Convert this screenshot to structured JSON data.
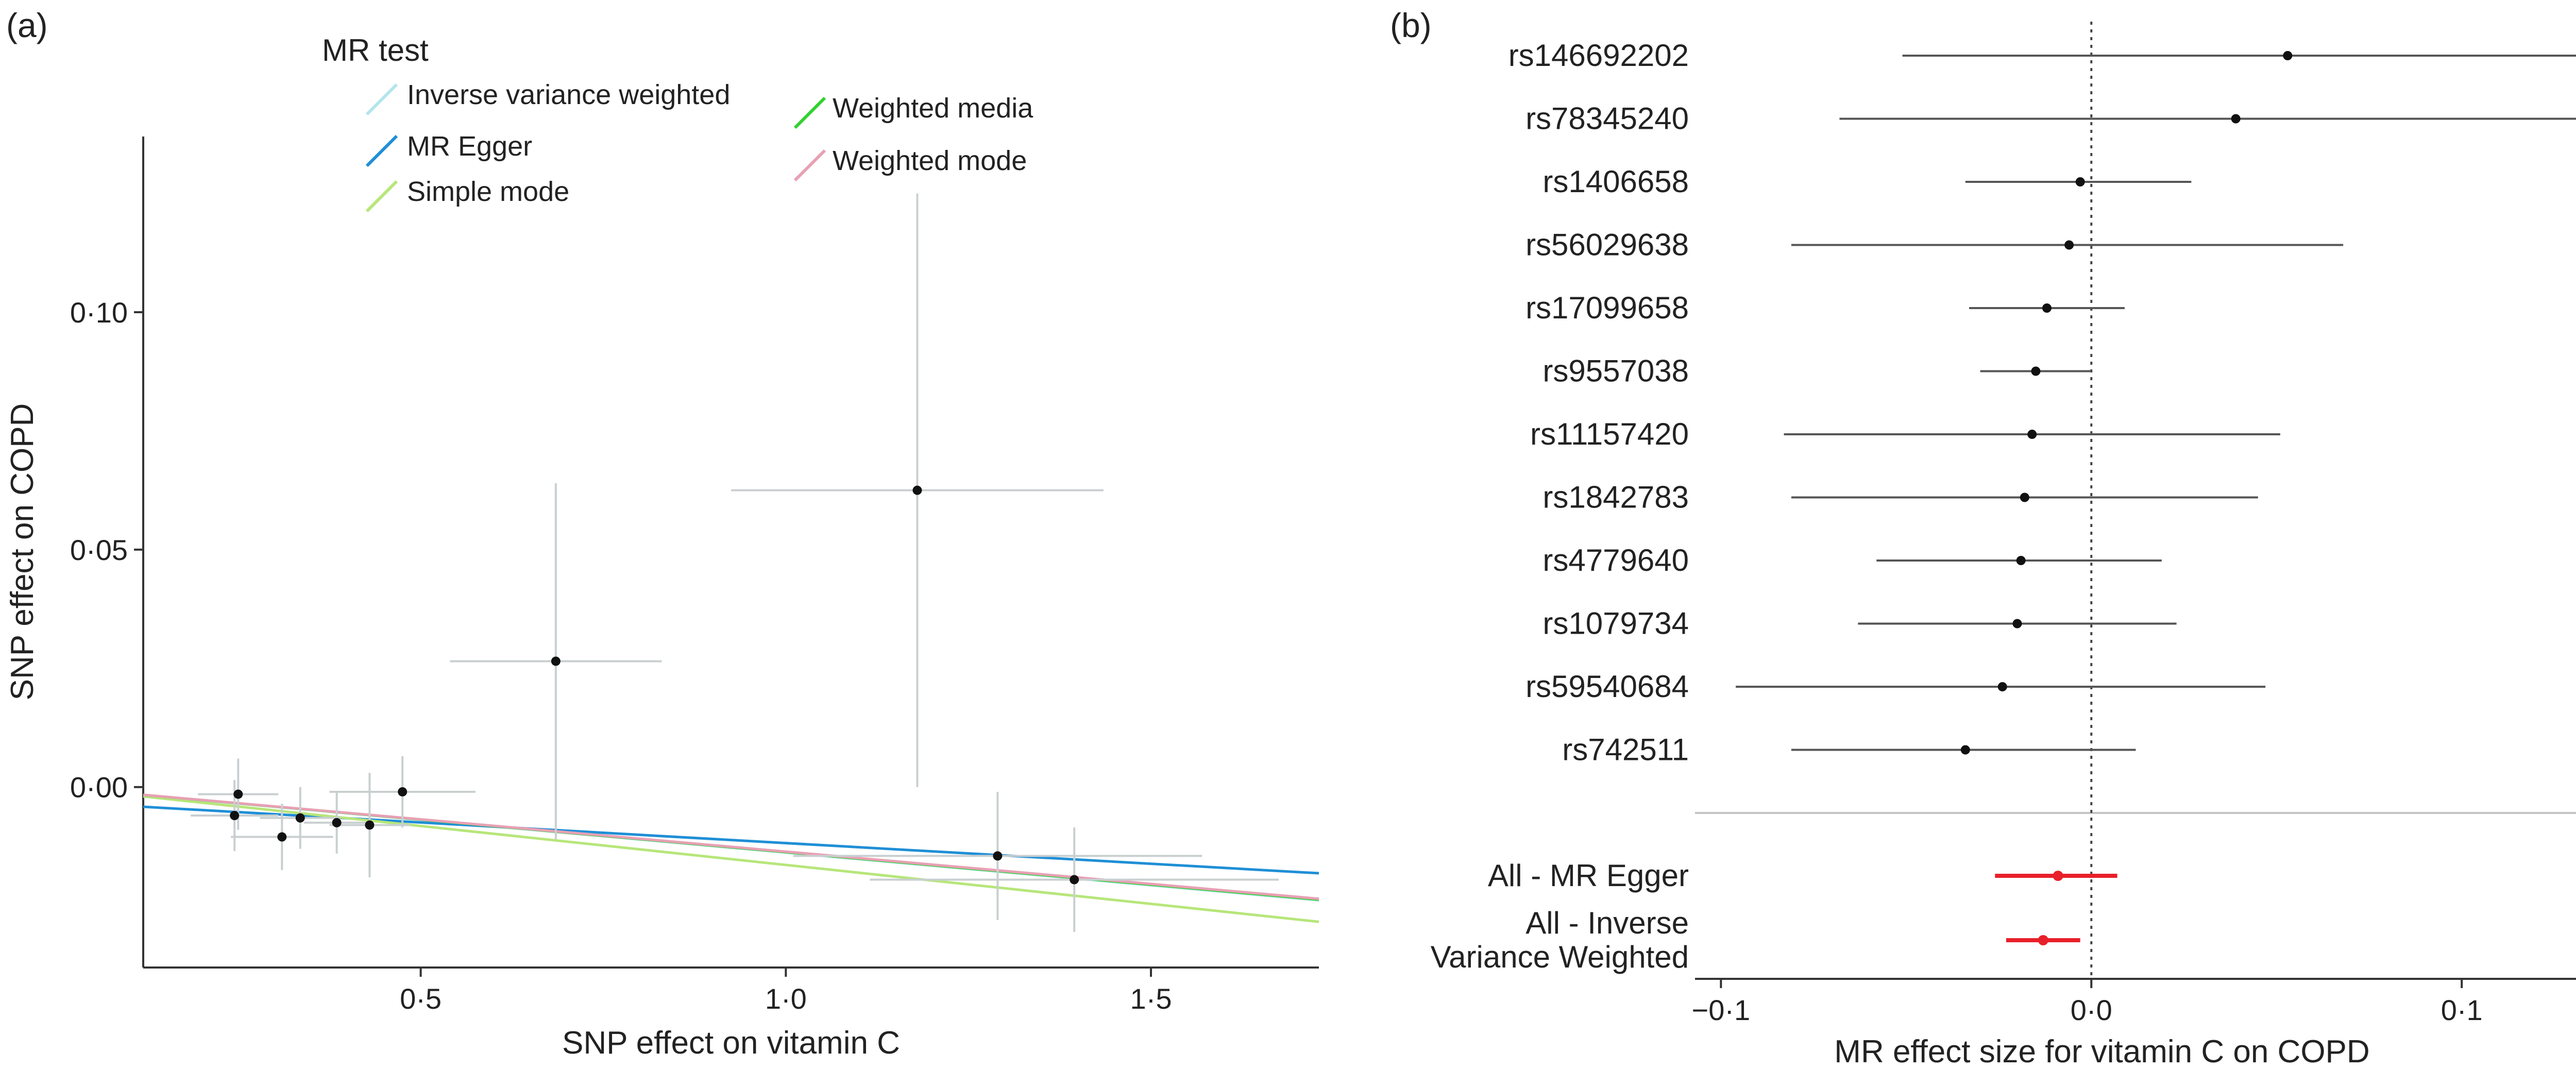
{
  "figure": {
    "panels": [
      {
        "label": "(a)"
      },
      {
        "label": "(b)"
      }
    ]
  },
  "chart_data": [
    {
      "type": "scatter",
      "panel": "(a)",
      "title": "",
      "xlabel": "SNP effect on vitamin C",
      "ylabel": "SNP effect on COPD",
      "xlim": [
        0.12,
        1.73
      ],
      "ylim": [
        -0.038,
        0.137
      ],
      "x_ticks": [
        0.5,
        1.0,
        1.5
      ],
      "x_tick_labels": [
        "0·5",
        "1·0",
        "1·5"
      ],
      "y_ticks": [
        0.0,
        0.05,
        0.1
      ],
      "y_tick_labels": [
        "0·00",
        "0·05",
        "0·10"
      ],
      "grid": false,
      "legend": {
        "title": "MR test",
        "placement": "top",
        "entries": [
          {
            "label": "Inverse variance weighted",
            "color": "#b3e5ec"
          },
          {
            "label": "MR Egger",
            "color": "#1f8fd6"
          },
          {
            "label": "Simple mode",
            "color": "#b7e67a"
          },
          {
            "label": "Weighted media",
            "color": "#2fd12f"
          },
          {
            "label": "Weighted mode",
            "color": "#e8a0b4"
          }
        ]
      },
      "lines": [
        {
          "name": "Inverse variance weighted",
          "color": "#b3e5ec",
          "intercept": 0.0,
          "slope": -0.0138
        },
        {
          "name": "MR Egger",
          "color": "#1f8fd6",
          "intercept": -0.0031,
          "slope": -0.0087
        },
        {
          "name": "Simple mode",
          "color": "#b7e67a",
          "intercept": 0.0,
          "slope": -0.0164
        },
        {
          "name": "Weighted media",
          "color": "#2fd12f",
          "intercept": 0.0,
          "slope": -0.0137
        },
        {
          "name": "Weighted mode",
          "color": "#e8a0b4",
          "intercept": 0.0,
          "slope": -0.0136
        }
      ],
      "points": [
        {
          "x": 0.25,
          "y": -0.0015,
          "x_err": 0.055,
          "y_err": 0.0075
        },
        {
          "x": 0.245,
          "y": -0.006,
          "x_err": 0.06,
          "y_err": 0.0075
        },
        {
          "x": 0.31,
          "y": -0.0105,
          "x_err": 0.07,
          "y_err": 0.007
        },
        {
          "x": 0.335,
          "y": -0.0065,
          "x_err": 0.055,
          "y_err": 0.0065
        },
        {
          "x": 0.385,
          "y": -0.0075,
          "x_err": 0.045,
          "y_err": 0.0065
        },
        {
          "x": 0.43,
          "y": -0.008,
          "x_err": 0.055,
          "y_err": 0.011
        },
        {
          "x": 0.475,
          "y": -0.001,
          "x_err": 0.1,
          "y_err": 0.0075
        },
        {
          "x": 0.685,
          "y": 0.0265,
          "x_err": 0.145,
          "y_err": 0.0375
        },
        {
          "x": 1.18,
          "y": 0.0625,
          "x_err": 0.255,
          "y_err": 0.0625
        },
        {
          "x": 1.29,
          "y": -0.0145,
          "x_err": 0.28,
          "y_err": 0.0135
        },
        {
          "x": 1.395,
          "y": -0.0195,
          "x_err": 0.28,
          "y_err": 0.011
        }
      ]
    },
    {
      "type": "forest",
      "panel": "(b)",
      "title": "",
      "xlabel": "MR effect size for vitamin C on COPD",
      "ylabel": "",
      "xlim": [
        -0.107,
        0.157
      ],
      "x_ticks": [
        -0.1,
        0.0,
        0.1
      ],
      "x_tick_labels": [
        "−0·1",
        "0·0",
        "0·1"
      ],
      "reference_line": 0.0,
      "grid": false,
      "rows": [
        {
          "label": "rs146692202",
          "estimate": 0.053,
          "lower": -0.051,
          "upper": 0.157,
          "color": "#555555"
        },
        {
          "label": "rs78345240",
          "estimate": 0.039,
          "lower": -0.068,
          "upper": 0.146,
          "color": "#555555"
        },
        {
          "label": "rs1406658",
          "estimate": -0.003,
          "lower": -0.034,
          "upper": 0.027,
          "color": "#555555"
        },
        {
          "label": "rs56029638",
          "estimate": -0.006,
          "lower": -0.081,
          "upper": 0.068,
          "color": "#555555"
        },
        {
          "label": "rs17099658",
          "estimate": -0.012,
          "lower": -0.033,
          "upper": 0.009,
          "color": "#555555"
        },
        {
          "label": "rs9557038",
          "estimate": -0.015,
          "lower": -0.03,
          "upper": 0.0,
          "color": "#555555"
        },
        {
          "label": "rs11157420",
          "estimate": -0.016,
          "lower": -0.083,
          "upper": 0.051,
          "color": "#555555"
        },
        {
          "label": "rs1842783",
          "estimate": -0.018,
          "lower": -0.081,
          "upper": 0.045,
          "color": "#555555"
        },
        {
          "label": "rs4779640",
          "estimate": -0.019,
          "lower": -0.058,
          "upper": 0.019,
          "color": "#555555"
        },
        {
          "label": "rs1079734",
          "estimate": -0.02,
          "lower": -0.063,
          "upper": 0.023,
          "color": "#555555"
        },
        {
          "label": "rs59540684",
          "estimate": -0.024,
          "lower": -0.096,
          "upper": 0.047,
          "color": "#555555"
        },
        {
          "label": "rs742511",
          "estimate": -0.034,
          "lower": -0.081,
          "upper": 0.012,
          "color": "#555555"
        }
      ],
      "summary_rows": [
        {
          "label_lines": [
            "All - MR Egger"
          ],
          "estimate": -0.009,
          "lower": -0.026,
          "upper": 0.007,
          "color": "#e8202a"
        },
        {
          "label_lines": [
            "All - Inverse",
            "Variance Weighted"
          ],
          "estimate": -0.013,
          "lower": -0.023,
          "upper": -0.003,
          "color": "#e8202a"
        }
      ]
    }
  ]
}
